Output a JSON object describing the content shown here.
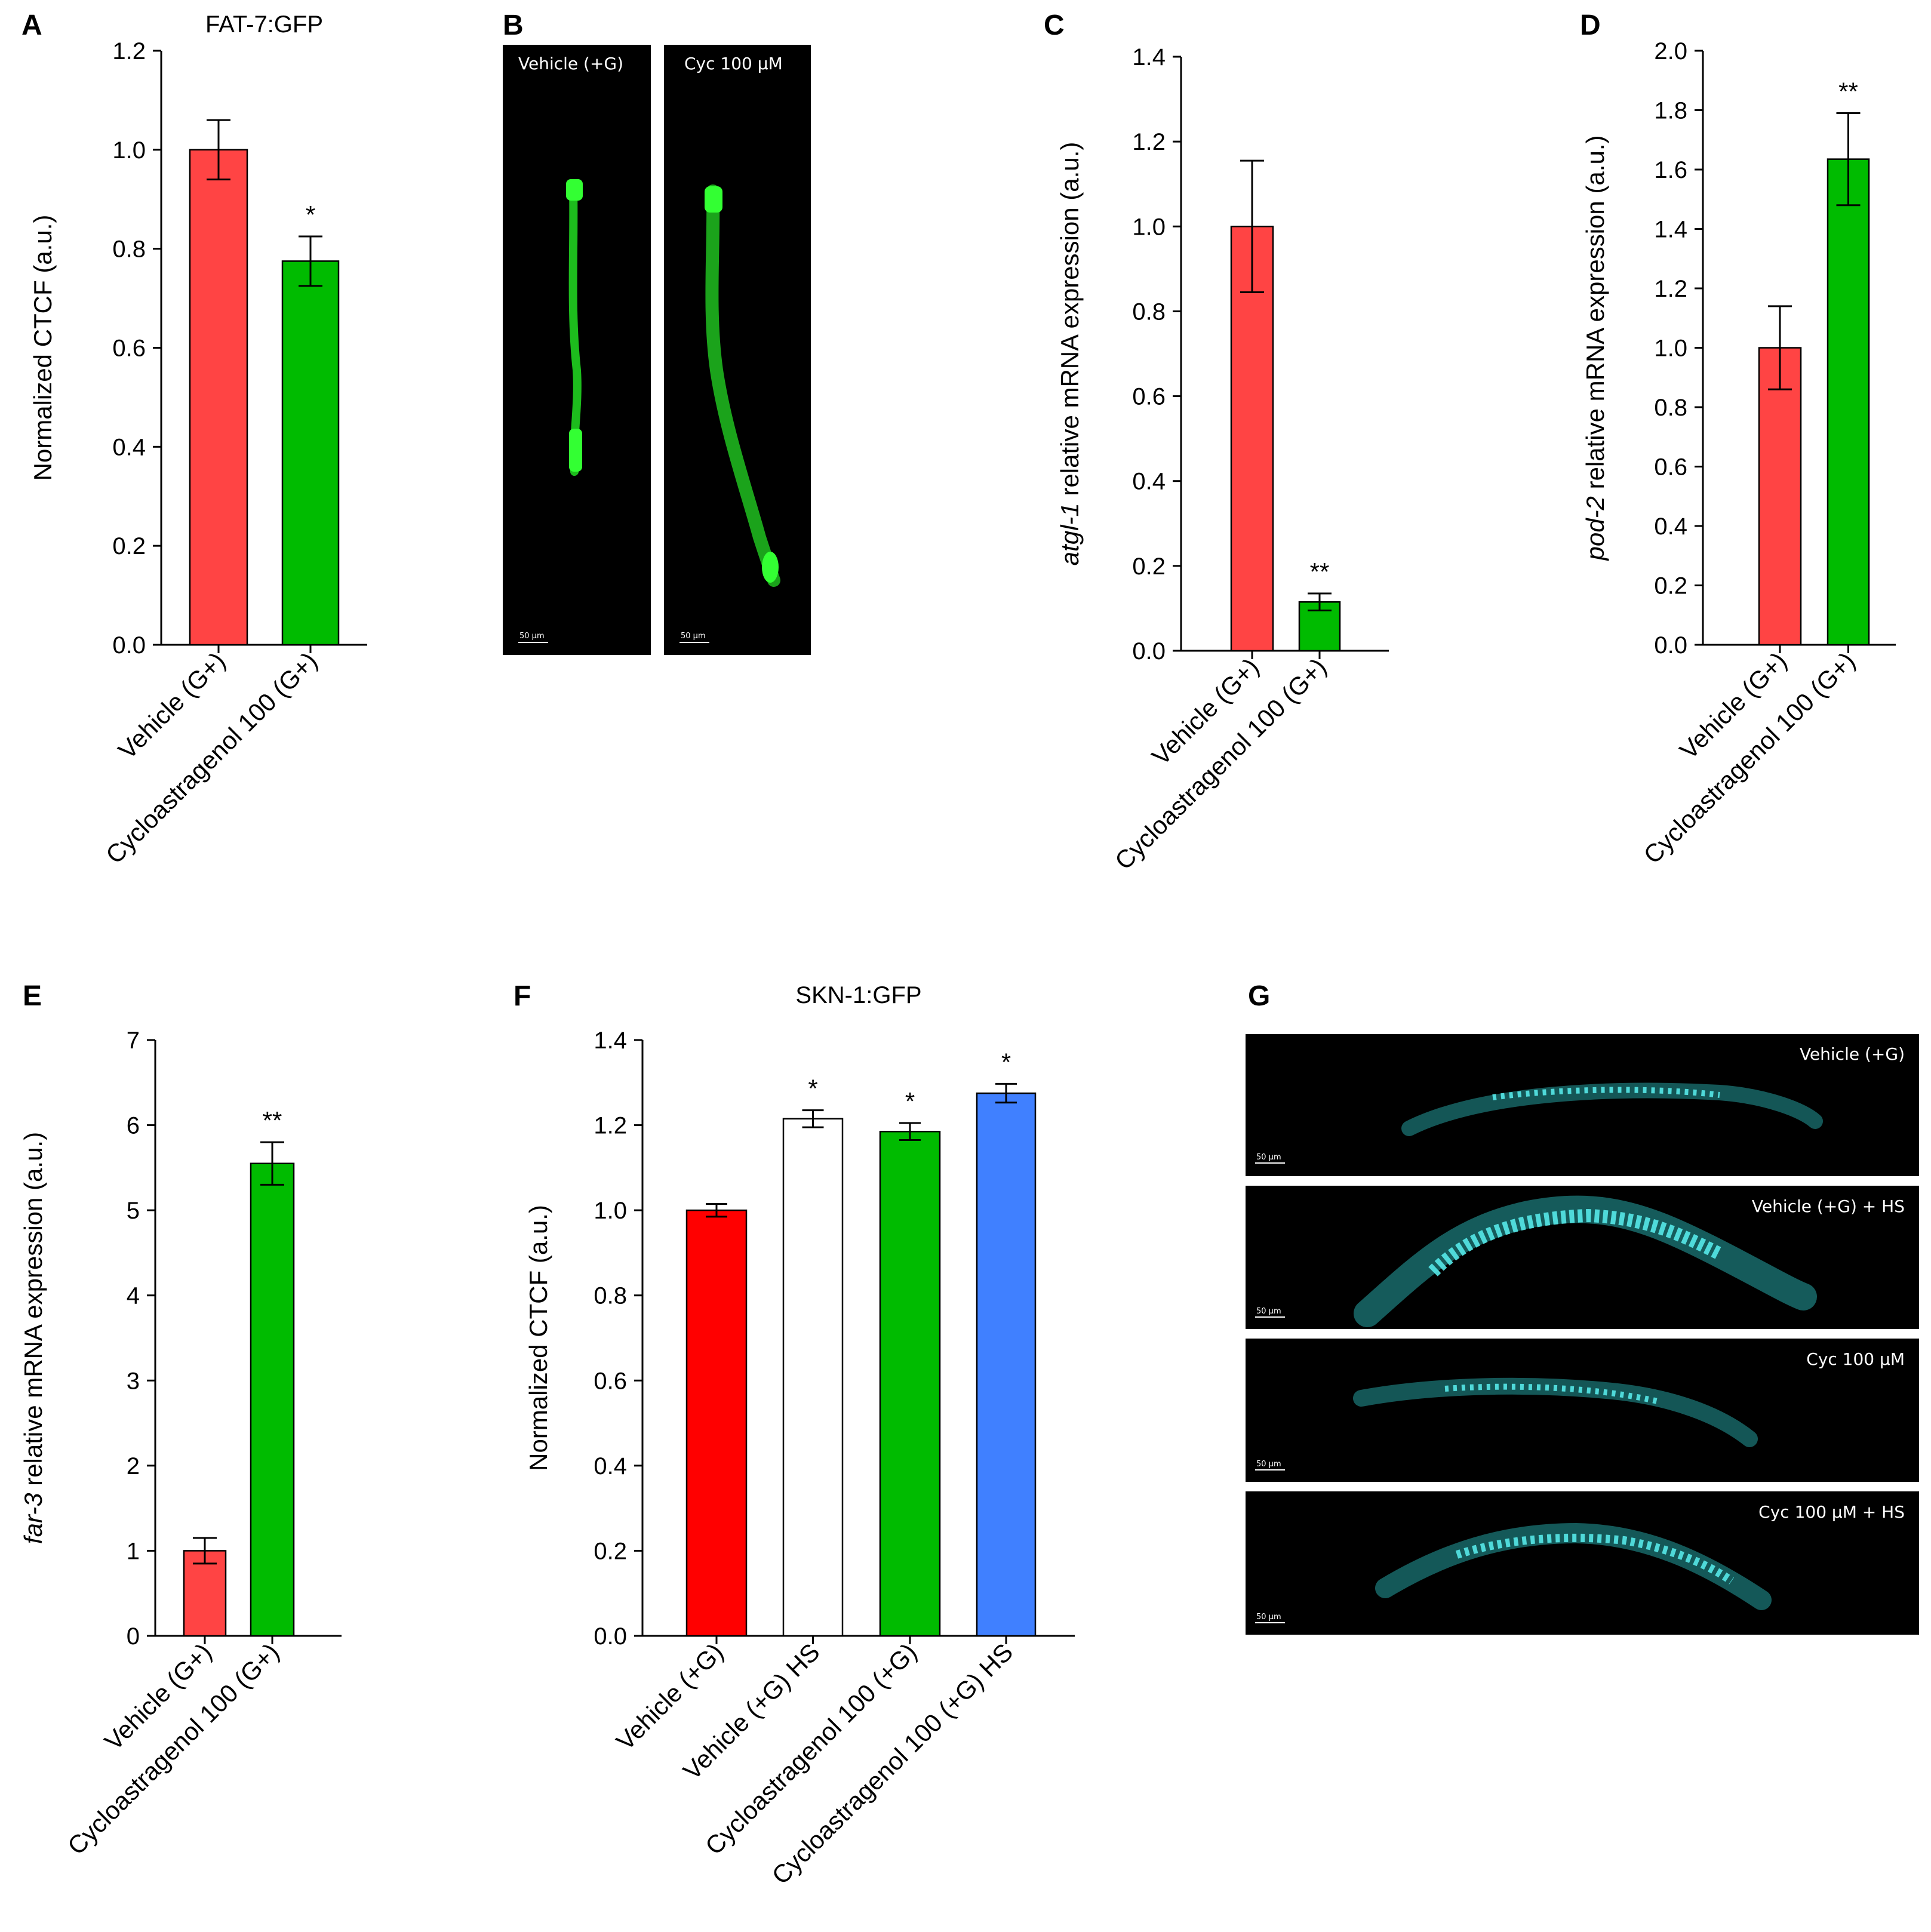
{
  "panels": {
    "A": {
      "label": "A"
    },
    "B": {
      "label": "B"
    },
    "C": {
      "label": "C"
    },
    "D": {
      "label": "D"
    },
    "E": {
      "label": "E"
    },
    "F": {
      "label": "F"
    },
    "G": {
      "label": "G"
    }
  },
  "colors": {
    "red": "#ff4444",
    "green": "#00bb00",
    "white": "#ffffff",
    "blue": "#4080ff",
    "red_f": "#ff0000",
    "gfp": "#22dd22",
    "cyan": "#2fd0d0"
  },
  "imagesB": {
    "left_caption": "Vehicle (+G)",
    "right_caption": "Cyc 100 µM",
    "scale_label": "50 µm"
  },
  "imagesG": {
    "captions": [
      "Vehicle (+G)",
      "Vehicle (+G) + HS",
      "Cyc 100 µM",
      "Cyc 100 µM + HS"
    ],
    "scale_label": "50 µm"
  },
  "chart_data": [
    {
      "panel": "A",
      "type": "bar",
      "title": "FAT-7:GFP",
      "ylabel": "Normalized CTCF (a.u.)",
      "ylabel_italic": "",
      "categories": [
        "Vehicle (G+)",
        "Cycloastragenol 100 (G+)"
      ],
      "values": [
        1.0,
        0.775
      ],
      "errors": [
        0.06,
        0.05
      ],
      "significance": [
        "",
        "*"
      ],
      "bar_colors": [
        "#ff4444",
        "#00bb00"
      ],
      "ylim": [
        0,
        1.2
      ],
      "yticks": [
        "0.0",
        "0.2",
        "0.4",
        "0.6",
        "0.8",
        "1.0",
        "1.2"
      ]
    },
    {
      "panel": "C",
      "type": "bar",
      "title": "",
      "ylabel": " relative mRNA expression (a.u.)",
      "ylabel_italic": "atgl-1",
      "categories": [
        "Vehicle (G+)",
        "Cycloastragenol 100 (G+)"
      ],
      "values": [
        1.0,
        0.115
      ],
      "errors": [
        0.155,
        0.02
      ],
      "significance": [
        "",
        "**"
      ],
      "bar_colors": [
        "#ff4444",
        "#00bb00"
      ],
      "ylim": [
        0,
        1.4
      ],
      "yticks": [
        "0.0",
        "0.2",
        "0.4",
        "0.6",
        "0.8",
        "1.0",
        "1.2",
        "1.4"
      ]
    },
    {
      "panel": "D",
      "type": "bar",
      "title": "",
      "ylabel": " relative mRNA expression (a.u.)",
      "ylabel_italic": "pod-2",
      "categories": [
        "Vehicle (G+)",
        "Cycloastragenol 100 (G+)"
      ],
      "values": [
        1.0,
        1.635
      ],
      "errors": [
        0.14,
        0.155
      ],
      "significance": [
        "",
        "**"
      ],
      "bar_colors": [
        "#ff4444",
        "#00bb00"
      ],
      "ylim": [
        0,
        2.0
      ],
      "yticks": [
        "0.0",
        "0.2",
        "0.4",
        "0.6",
        "0.8",
        "1.0",
        "1.2",
        "1.4",
        "1.6",
        "1.8",
        "2.0"
      ]
    },
    {
      "panel": "E",
      "type": "bar",
      "title": "",
      "ylabel": " relative mRNA expression (a.u.)",
      "ylabel_italic": "far-3",
      "categories": [
        "Vehicle (G+)",
        "Cycloastragenol 100 (G+)"
      ],
      "values": [
        1.0,
        5.55
      ],
      "errors": [
        0.15,
        0.25
      ],
      "significance": [
        "",
        "**"
      ],
      "bar_colors": [
        "#ff4444",
        "#00bb00"
      ],
      "ylim": [
        0,
        7
      ],
      "yticks": [
        "0",
        "1",
        "2",
        "3",
        "4",
        "5",
        "6",
        "7"
      ]
    },
    {
      "panel": "F",
      "type": "bar",
      "title": "SKN-1:GFP",
      "ylabel": "Normalized CTCF (a.u.)",
      "ylabel_italic": "",
      "categories": [
        "Vehicle (+G)",
        "Vehicle (+G) HS",
        "Cycloastragenol 100 (+G)",
        "Cycloastragenol 100 (+G) HS"
      ],
      "values": [
        1.0,
        1.215,
        1.185,
        1.275
      ],
      "errors": [
        0.015,
        0.02,
        0.02,
        0.022
      ],
      "significance": [
        "",
        "*",
        "*",
        "*"
      ],
      "bar_colors": [
        "#ff0000",
        "#ffffff",
        "#00bb00",
        "#4080ff"
      ],
      "ylim": [
        0,
        1.4
      ],
      "yticks": [
        "0.0",
        "0.2",
        "0.4",
        "0.6",
        "0.8",
        "1.0",
        "1.2",
        "1.4"
      ]
    }
  ]
}
